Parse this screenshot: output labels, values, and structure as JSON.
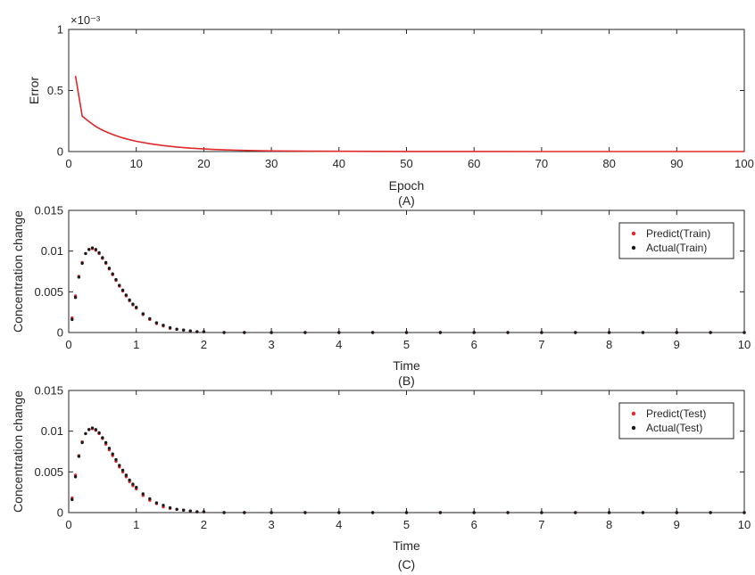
{
  "chart_data": [
    {
      "type": "line",
      "panel_label": "(A)",
      "title": "",
      "xlabel": "Epoch",
      "ylabel": "Error",
      "y_exponent": "×10⁻³",
      "xlim": [
        0,
        100
      ],
      "ylim": [
        0,
        1
      ],
      "xticks": [
        0,
        10,
        20,
        30,
        40,
        50,
        60,
        70,
        80,
        90,
        100
      ],
      "yticks": [
        0,
        0.5,
        1
      ],
      "grid": false,
      "legend": null,
      "series": [
        {
          "color": "#e0282a",
          "x": [
            1,
            2,
            3,
            4,
            5,
            6,
            7,
            8,
            9,
            10,
            12,
            14,
            16,
            18,
            20,
            22,
            25,
            28,
            30,
            35,
            40,
            50,
            60,
            70,
            80,
            90,
            100
          ],
          "y": [
            0.62,
            0.29,
            0.245,
            0.205,
            0.175,
            0.15,
            0.13,
            0.112,
            0.097,
            0.084,
            0.064,
            0.049,
            0.037,
            0.028,
            0.021,
            0.016,
            0.011,
            0.007,
            0.005,
            0.003,
            0.002,
            0.001,
            0.0005,
            0.0003,
            0.0002,
            0.0001,
            0.0001
          ]
        }
      ]
    },
    {
      "type": "scatter",
      "panel_label": "(B)",
      "title": "",
      "xlabel": "Time",
      "ylabel": "Concentration change",
      "xlim": [
        0,
        10
      ],
      "ylim": [
        0,
        0.015
      ],
      "xticks": [
        0,
        1,
        2,
        3,
        4,
        5,
        6,
        7,
        8,
        9,
        10
      ],
      "yticks": [
        0,
        0.005,
        0.01,
        0.015
      ],
      "ytick_labels": [
        "0",
        "0.005",
        "0.01",
        "0.015"
      ],
      "grid": false,
      "legend_position": "top-right",
      "series": [
        {
          "name": "Predict(Train)",
          "color": "#e0282a",
          "x": [
            0.05,
            0.1,
            0.15,
            0.2,
            0.25,
            0.3,
            0.35,
            0.4,
            0.45,
            0.5,
            0.55,
            0.6,
            0.65,
            0.7,
            0.75,
            0.8,
            0.85,
            0.9,
            0.95,
            1.0,
            1.1,
            1.2,
            1.3,
            1.4,
            1.5,
            1.6,
            1.7,
            1.8,
            1.9,
            2.0,
            2.3,
            2.6,
            3.0,
            3.5,
            4.0,
            4.5,
            5.0,
            5.5,
            6.0,
            6.5,
            7.0,
            7.5,
            8.0,
            8.5,
            9.0,
            9.5,
            10.0
          ],
          "y": [
            0.0018,
            0.0045,
            0.0069,
            0.0086,
            0.0097,
            0.0102,
            0.0103,
            0.0101,
            0.0097,
            0.0091,
            0.0085,
            0.0078,
            0.0071,
            0.0064,
            0.0057,
            0.0051,
            0.0045,
            0.0039,
            0.0034,
            0.003,
            0.0022,
            0.0016,
            0.0011,
            0.0008,
            0.0005,
            0.0004,
            0.0003,
            0.0002,
            0.0001,
            0.0001,
            0.0,
            0.0,
            0.0,
            0.0,
            0.0,
            0.0,
            0.0,
            0.0,
            0.0,
            0.0,
            0.0,
            0.0,
            0.0,
            0.0,
            0.0,
            0.0,
            0.0
          ]
        },
        {
          "name": "Actual(Train)",
          "color": "#1a1a1a",
          "x": [
            0.05,
            0.1,
            0.15,
            0.2,
            0.25,
            0.3,
            0.35,
            0.4,
            0.45,
            0.5,
            0.55,
            0.6,
            0.65,
            0.7,
            0.75,
            0.8,
            0.85,
            0.9,
            0.95,
            1.0,
            1.1,
            1.2,
            1.3,
            1.4,
            1.5,
            1.6,
            1.7,
            1.8,
            1.9,
            2.0,
            2.3,
            2.6,
            3.0,
            3.5,
            4.0,
            4.5,
            5.0,
            5.5,
            6.0,
            6.5,
            7.0,
            7.5,
            8.0,
            8.5,
            9.0,
            9.5,
            10.0
          ],
          "y": [
            0.0016,
            0.0043,
            0.0068,
            0.0085,
            0.0097,
            0.0102,
            0.0104,
            0.0102,
            0.0098,
            0.0092,
            0.0086,
            0.0079,
            0.0072,
            0.0065,
            0.0058,
            0.0052,
            0.0046,
            0.004,
            0.0035,
            0.0031,
            0.0023,
            0.0017,
            0.0012,
            0.0009,
            0.0006,
            0.0004,
            0.0003,
            0.0002,
            0.0001,
            0.0001,
            0.0,
            0.0,
            0.0,
            0.0,
            0.0,
            0.0,
            0.0,
            0.0,
            0.0,
            0.0,
            0.0,
            0.0,
            0.0,
            0.0,
            0.0,
            0.0,
            0.0
          ]
        }
      ]
    },
    {
      "type": "scatter",
      "panel_label": "(C)",
      "title": "",
      "xlabel": "Time",
      "ylabel": "Concentration change",
      "xlim": [
        0,
        10
      ],
      "ylim": [
        0,
        0.015
      ],
      "xticks": [
        0,
        1,
        2,
        3,
        4,
        5,
        6,
        7,
        8,
        9,
        10
      ],
      "yticks": [
        0,
        0.005,
        0.01,
        0.015
      ],
      "ytick_labels": [
        "0",
        "0.005",
        "0.01",
        "0.015"
      ],
      "grid": false,
      "legend_position": "top-right",
      "series": [
        {
          "name": "Predict(Test)",
          "color": "#e0282a",
          "x": [
            0.05,
            0.1,
            0.15,
            0.2,
            0.25,
            0.3,
            0.35,
            0.4,
            0.45,
            0.5,
            0.55,
            0.6,
            0.65,
            0.7,
            0.75,
            0.8,
            0.85,
            0.9,
            0.95,
            1.0,
            1.1,
            1.2,
            1.3,
            1.4,
            1.5,
            1.6,
            1.7,
            1.8,
            1.9,
            2.0,
            2.3,
            2.6,
            3.0,
            3.5,
            4.0,
            4.5,
            5.0,
            5.5,
            6.0,
            6.5,
            7.0,
            7.5,
            8.0,
            8.5,
            9.0,
            9.5,
            10.0
          ],
          "y": [
            0.0018,
            0.0046,
            0.007,
            0.0087,
            0.0097,
            0.0102,
            0.0103,
            0.0101,
            0.0097,
            0.0091,
            0.0084,
            0.0077,
            0.007,
            0.0063,
            0.0056,
            0.005,
            0.0044,
            0.0038,
            0.0033,
            0.0029,
            0.0021,
            0.0015,
            0.0011,
            0.0007,
            0.0005,
            0.0004,
            0.0003,
            0.0002,
            0.0001,
            0.0001,
            0.0,
            0.0,
            0.0,
            0.0,
            0.0,
            0.0,
            0.0,
            0.0,
            0.0,
            0.0,
            0.0,
            0.0,
            0.0,
            0.0,
            0.0,
            0.0,
            0.0
          ]
        },
        {
          "name": "Actual(Test)",
          "color": "#1a1a1a",
          "x": [
            0.05,
            0.1,
            0.15,
            0.2,
            0.25,
            0.3,
            0.35,
            0.4,
            0.45,
            0.5,
            0.55,
            0.6,
            0.65,
            0.7,
            0.75,
            0.8,
            0.85,
            0.9,
            0.95,
            1.0,
            1.1,
            1.2,
            1.3,
            1.4,
            1.5,
            1.6,
            1.7,
            1.8,
            1.9,
            2.0,
            2.3,
            2.6,
            3.0,
            3.5,
            4.0,
            4.5,
            5.0,
            5.5,
            6.0,
            6.5,
            7.0,
            7.5,
            8.0,
            8.5,
            9.0,
            9.5,
            10.0
          ],
          "y": [
            0.0016,
            0.0044,
            0.0069,
            0.0086,
            0.0097,
            0.0102,
            0.0104,
            0.0102,
            0.0098,
            0.0092,
            0.0086,
            0.0079,
            0.0072,
            0.0065,
            0.0058,
            0.0052,
            0.0046,
            0.004,
            0.0035,
            0.0031,
            0.0023,
            0.0017,
            0.0012,
            0.0009,
            0.0006,
            0.0004,
            0.0003,
            0.0002,
            0.0001,
            0.0001,
            0.0,
            0.0,
            0.0,
            0.0,
            0.0,
            0.0,
            0.0,
            0.0,
            0.0,
            0.0,
            0.0,
            0.0,
            0.0,
            0.0,
            0.0,
            0.0,
            0.0
          ]
        }
      ]
    }
  ]
}
